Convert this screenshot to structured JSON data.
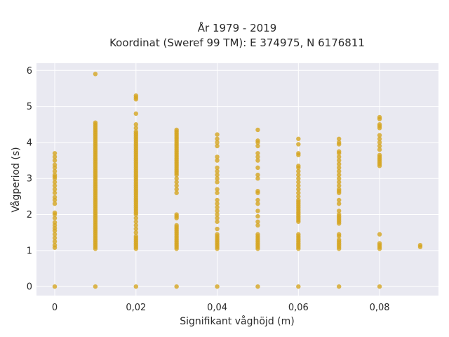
{
  "chart_data": {
    "type": "scatter",
    "title_lines": [
      "År 1979 - 2019",
      "Koordinat (Sweref 99 TM): E 374975, N 6176811"
    ],
    "xlabel": "Signifikant våghöjd (m)",
    "ylabel": "Vågperiod (s)",
    "xlim": [
      -0.0045,
      0.0945
    ],
    "ylim": [
      -0.25,
      6.2
    ],
    "xticks": [
      0,
      0.02,
      0.04,
      0.06,
      0.08
    ],
    "xtick_labels": [
      "0",
      "0,02",
      "0,04",
      "0,06",
      "0,08"
    ],
    "yticks": [
      0,
      1,
      2,
      3,
      4,
      5,
      6
    ],
    "ytick_labels": [
      "0",
      "1",
      "2",
      "3",
      "4",
      "5",
      "6"
    ],
    "grid": true,
    "marker_color": "#d4a520",
    "background_color": "#e9e9f1",
    "points_by_x": [
      {
        "x": 0,
        "y": [
          0,
          1.08,
          1.15,
          1.25,
          1.35,
          1.45,
          1.55,
          1.62,
          1.7,
          1.78,
          1.9,
          2.0,
          2.05,
          2.3,
          2.4,
          2.48,
          2.6,
          2.7,
          2.8,
          2.9,
          3.0,
          3.05,
          3.1,
          3.2,
          3.3,
          3.38,
          3.5,
          3.6,
          3.7
        ]
      },
      {
        "x": 0.01,
        "y": [
          0,
          1.05,
          1.1,
          1.15,
          1.2,
          1.25,
          1.3,
          1.35,
          1.4,
          1.45,
          1.5,
          1.55,
          1.6,
          1.65,
          1.7,
          1.75,
          1.8,
          1.85,
          1.9,
          1.95,
          2.0,
          2.05,
          2.1,
          2.15,
          2.2,
          2.25,
          2.3,
          2.35,
          2.4,
          2.45,
          2.5,
          2.55,
          2.6,
          2.65,
          2.7,
          2.75,
          2.8,
          2.85,
          2.9,
          2.95,
          3.0,
          3.05,
          3.1,
          3.15,
          3.2,
          3.25,
          3.3,
          3.35,
          3.4,
          3.45,
          3.5,
          3.55,
          3.6,
          3.65,
          3.7,
          3.75,
          3.8,
          3.85,
          3.9,
          3.95,
          4.0,
          4.05,
          4.1,
          4.15,
          4.2,
          4.25,
          4.3,
          4.35,
          4.4,
          4.45,
          4.5,
          4.55,
          5.9
        ]
      },
      {
        "x": 0.02,
        "y": [
          0,
          1.05,
          1.1,
          1.15,
          1.2,
          1.25,
          1.3,
          1.35,
          1.4,
          1.5,
          1.6,
          1.7,
          1.8,
          1.9,
          2.0,
          2.05,
          2.1,
          2.15,
          2.2,
          2.25,
          2.3,
          2.35,
          2.4,
          2.45,
          2.5,
          2.55,
          2.6,
          2.65,
          2.7,
          2.75,
          2.8,
          2.85,
          2.9,
          2.95,
          3.0,
          3.05,
          3.1,
          3.15,
          3.2,
          3.25,
          3.3,
          3.35,
          3.4,
          3.45,
          3.5,
          3.55,
          3.6,
          3.65,
          3.7,
          3.75,
          3.8,
          3.85,
          3.9,
          3.95,
          4.0,
          4.05,
          4.1,
          4.15,
          4.2,
          4.25,
          4.3,
          4.4,
          4.5,
          4.8,
          5.2,
          5.25,
          5.3
        ]
      },
      {
        "x": 0.03,
        "y": [
          0,
          1.05,
          1.1,
          1.15,
          1.2,
          1.25,
          1.3,
          1.35,
          1.4,
          1.45,
          1.5,
          1.55,
          1.6,
          1.65,
          1.7,
          1.9,
          1.95,
          2.0,
          2.6,
          2.7,
          2.8,
          2.9,
          3.0,
          3.1,
          3.15,
          3.2,
          3.25,
          3.3,
          3.35,
          3.4,
          3.45,
          3.5,
          3.55,
          3.6,
          3.65,
          3.7,
          3.75,
          3.8,
          3.85,
          3.9,
          3.95,
          4.0,
          4.05,
          4.1,
          4.15,
          4.2,
          4.25,
          4.3,
          4.35
        ]
      },
      {
        "x": 0.04,
        "y": [
          0,
          1.05,
          1.1,
          1.15,
          1.2,
          1.25,
          1.3,
          1.35,
          1.4,
          1.45,
          1.6,
          1.8,
          1.9,
          2.0,
          2.1,
          2.2,
          2.3,
          2.4,
          2.6,
          2.7,
          2.9,
          3.0,
          3.1,
          3.2,
          3.3,
          3.5,
          3.6,
          3.9,
          4.0,
          4.1,
          4.22
        ]
      },
      {
        "x": 0.05,
        "y": [
          0,
          1.05,
          1.1,
          1.15,
          1.2,
          1.25,
          1.3,
          1.35,
          1.4,
          1.45,
          1.7,
          1.8,
          1.95,
          2.1,
          2.3,
          2.4,
          2.6,
          2.65,
          3.0,
          3.1,
          3.3,
          3.5,
          3.6,
          3.7,
          3.9,
          4.0,
          4.05,
          4.35
        ]
      },
      {
        "x": 0.06,
        "y": [
          0,
          1.05,
          1.1,
          1.15,
          1.2,
          1.25,
          1.3,
          1.35,
          1.4,
          1.45,
          1.8,
          1.85,
          1.9,
          1.95,
          2.0,
          2.05,
          2.1,
          2.15,
          2.2,
          2.25,
          2.3,
          2.35,
          2.4,
          2.5,
          2.6,
          2.7,
          2.8,
          2.9,
          3.0,
          3.1,
          3.2,
          3.3,
          3.35,
          3.65,
          3.7,
          3.95,
          4.1
        ]
      },
      {
        "x": 0.07,
        "y": [
          0,
          1.05,
          1.1,
          1.15,
          1.2,
          1.25,
          1.3,
          1.4,
          1.45,
          1.75,
          1.8,
          1.85,
          1.9,
          1.95,
          2.0,
          2.1,
          2.3,
          2.4,
          2.6,
          2.65,
          2.7,
          2.8,
          2.9,
          3.0,
          3.1,
          3.2,
          3.3,
          3.4,
          3.5,
          3.6,
          3.7,
          3.75,
          3.95,
          4.0,
          4.1
        ]
      },
      {
        "x": 0.08,
        "y": [
          0,
          1.05,
          1.1,
          1.15,
          1.2,
          1.45,
          3.35,
          3.4,
          3.45,
          3.5,
          3.55,
          3.6,
          3.65,
          3.8,
          3.9,
          4.0,
          4.1,
          4.2,
          4.4,
          4.45,
          4.5,
          4.65,
          4.7
        ]
      },
      {
        "x": 0.09,
        "y": [
          1.1,
          1.15
        ]
      }
    ]
  }
}
